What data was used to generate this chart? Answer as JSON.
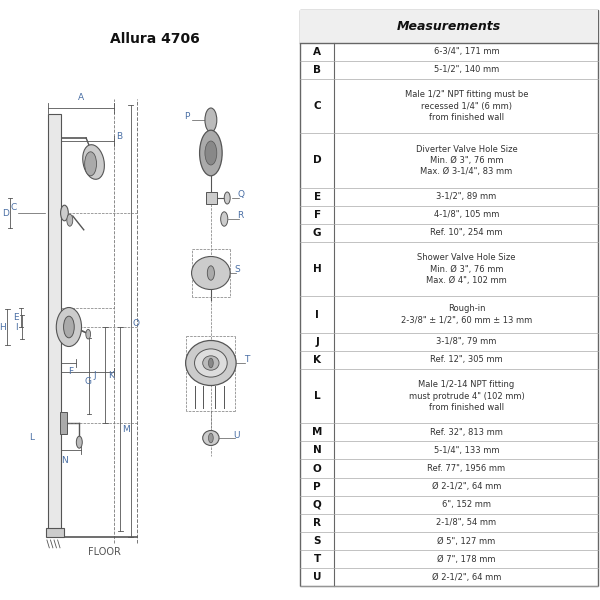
{
  "title": "Allura 4706",
  "table_header": "Measurements",
  "rows": [
    {
      "label": "A",
      "value": "6-3/4\", 171 mm",
      "lines": 1
    },
    {
      "label": "B",
      "value": "5-1/2\", 140 mm",
      "lines": 1
    },
    {
      "label": "C",
      "value": "Male 1/2\" NPT fitting must be\nrecessed 1/4\" (6 mm)\nfrom finished wall",
      "lines": 3
    },
    {
      "label": "D",
      "value": "Diverter Valve Hole Size\nMin. Ø 3\", 76 mm\nMax. Ø 3-1/4\", 83 mm",
      "lines": 3
    },
    {
      "label": "E",
      "value": "3-1/2\", 89 mm",
      "lines": 1
    },
    {
      "label": "F",
      "value": "4-1/8\", 105 mm",
      "lines": 1
    },
    {
      "label": "G",
      "value": "Ref. 10\", 254 mm",
      "lines": 1
    },
    {
      "label": "H",
      "value": "Shower Valve Hole Size\nMin. Ø 3\", 76 mm\nMax. Ø 4\", 102 mm",
      "lines": 3
    },
    {
      "label": "I",
      "value": "Rough-in\n2-3/8\" ± 1/2\", 60 mm ± 13 mm",
      "lines": 2
    },
    {
      "label": "J",
      "value": "3-1/8\", 79 mm",
      "lines": 1
    },
    {
      "label": "K",
      "value": "Ref. 12\", 305 mm",
      "lines": 1
    },
    {
      "label": "L",
      "value": "Male 1/2-14 NPT fitting\nmust protrude 4\" (102 mm)\nfrom finished wall",
      "lines": 3
    },
    {
      "label": "M",
      "value": "Ref. 32\", 813 mm",
      "lines": 1
    },
    {
      "label": "N",
      "value": "5-1/4\", 133 mm",
      "lines": 1
    },
    {
      "label": "O",
      "value": "Ref. 77\", 1956 mm",
      "lines": 1
    },
    {
      "label": "P",
      "value": "Ø 2-1/2\", 64 mm",
      "lines": 1
    },
    {
      "label": "Q",
      "value": "6\", 152 mm",
      "lines": 1
    },
    {
      "label": "R",
      "value": "2-1/8\", 54 mm",
      "lines": 1
    },
    {
      "label": "S",
      "value": "Ø 5\", 127 mm",
      "lines": 1
    },
    {
      "label": "T",
      "value": "Ø 7\", 178 mm",
      "lines": 1
    },
    {
      "label": "U",
      "value": "Ø 2-1/2\", 64 mm",
      "lines": 1
    }
  ],
  "bg_color": "#ffffff",
  "text_color": "#333333",
  "floor_label": "FLOOR",
  "dim_color": "#4a6fa5",
  "line_color": "#555555"
}
